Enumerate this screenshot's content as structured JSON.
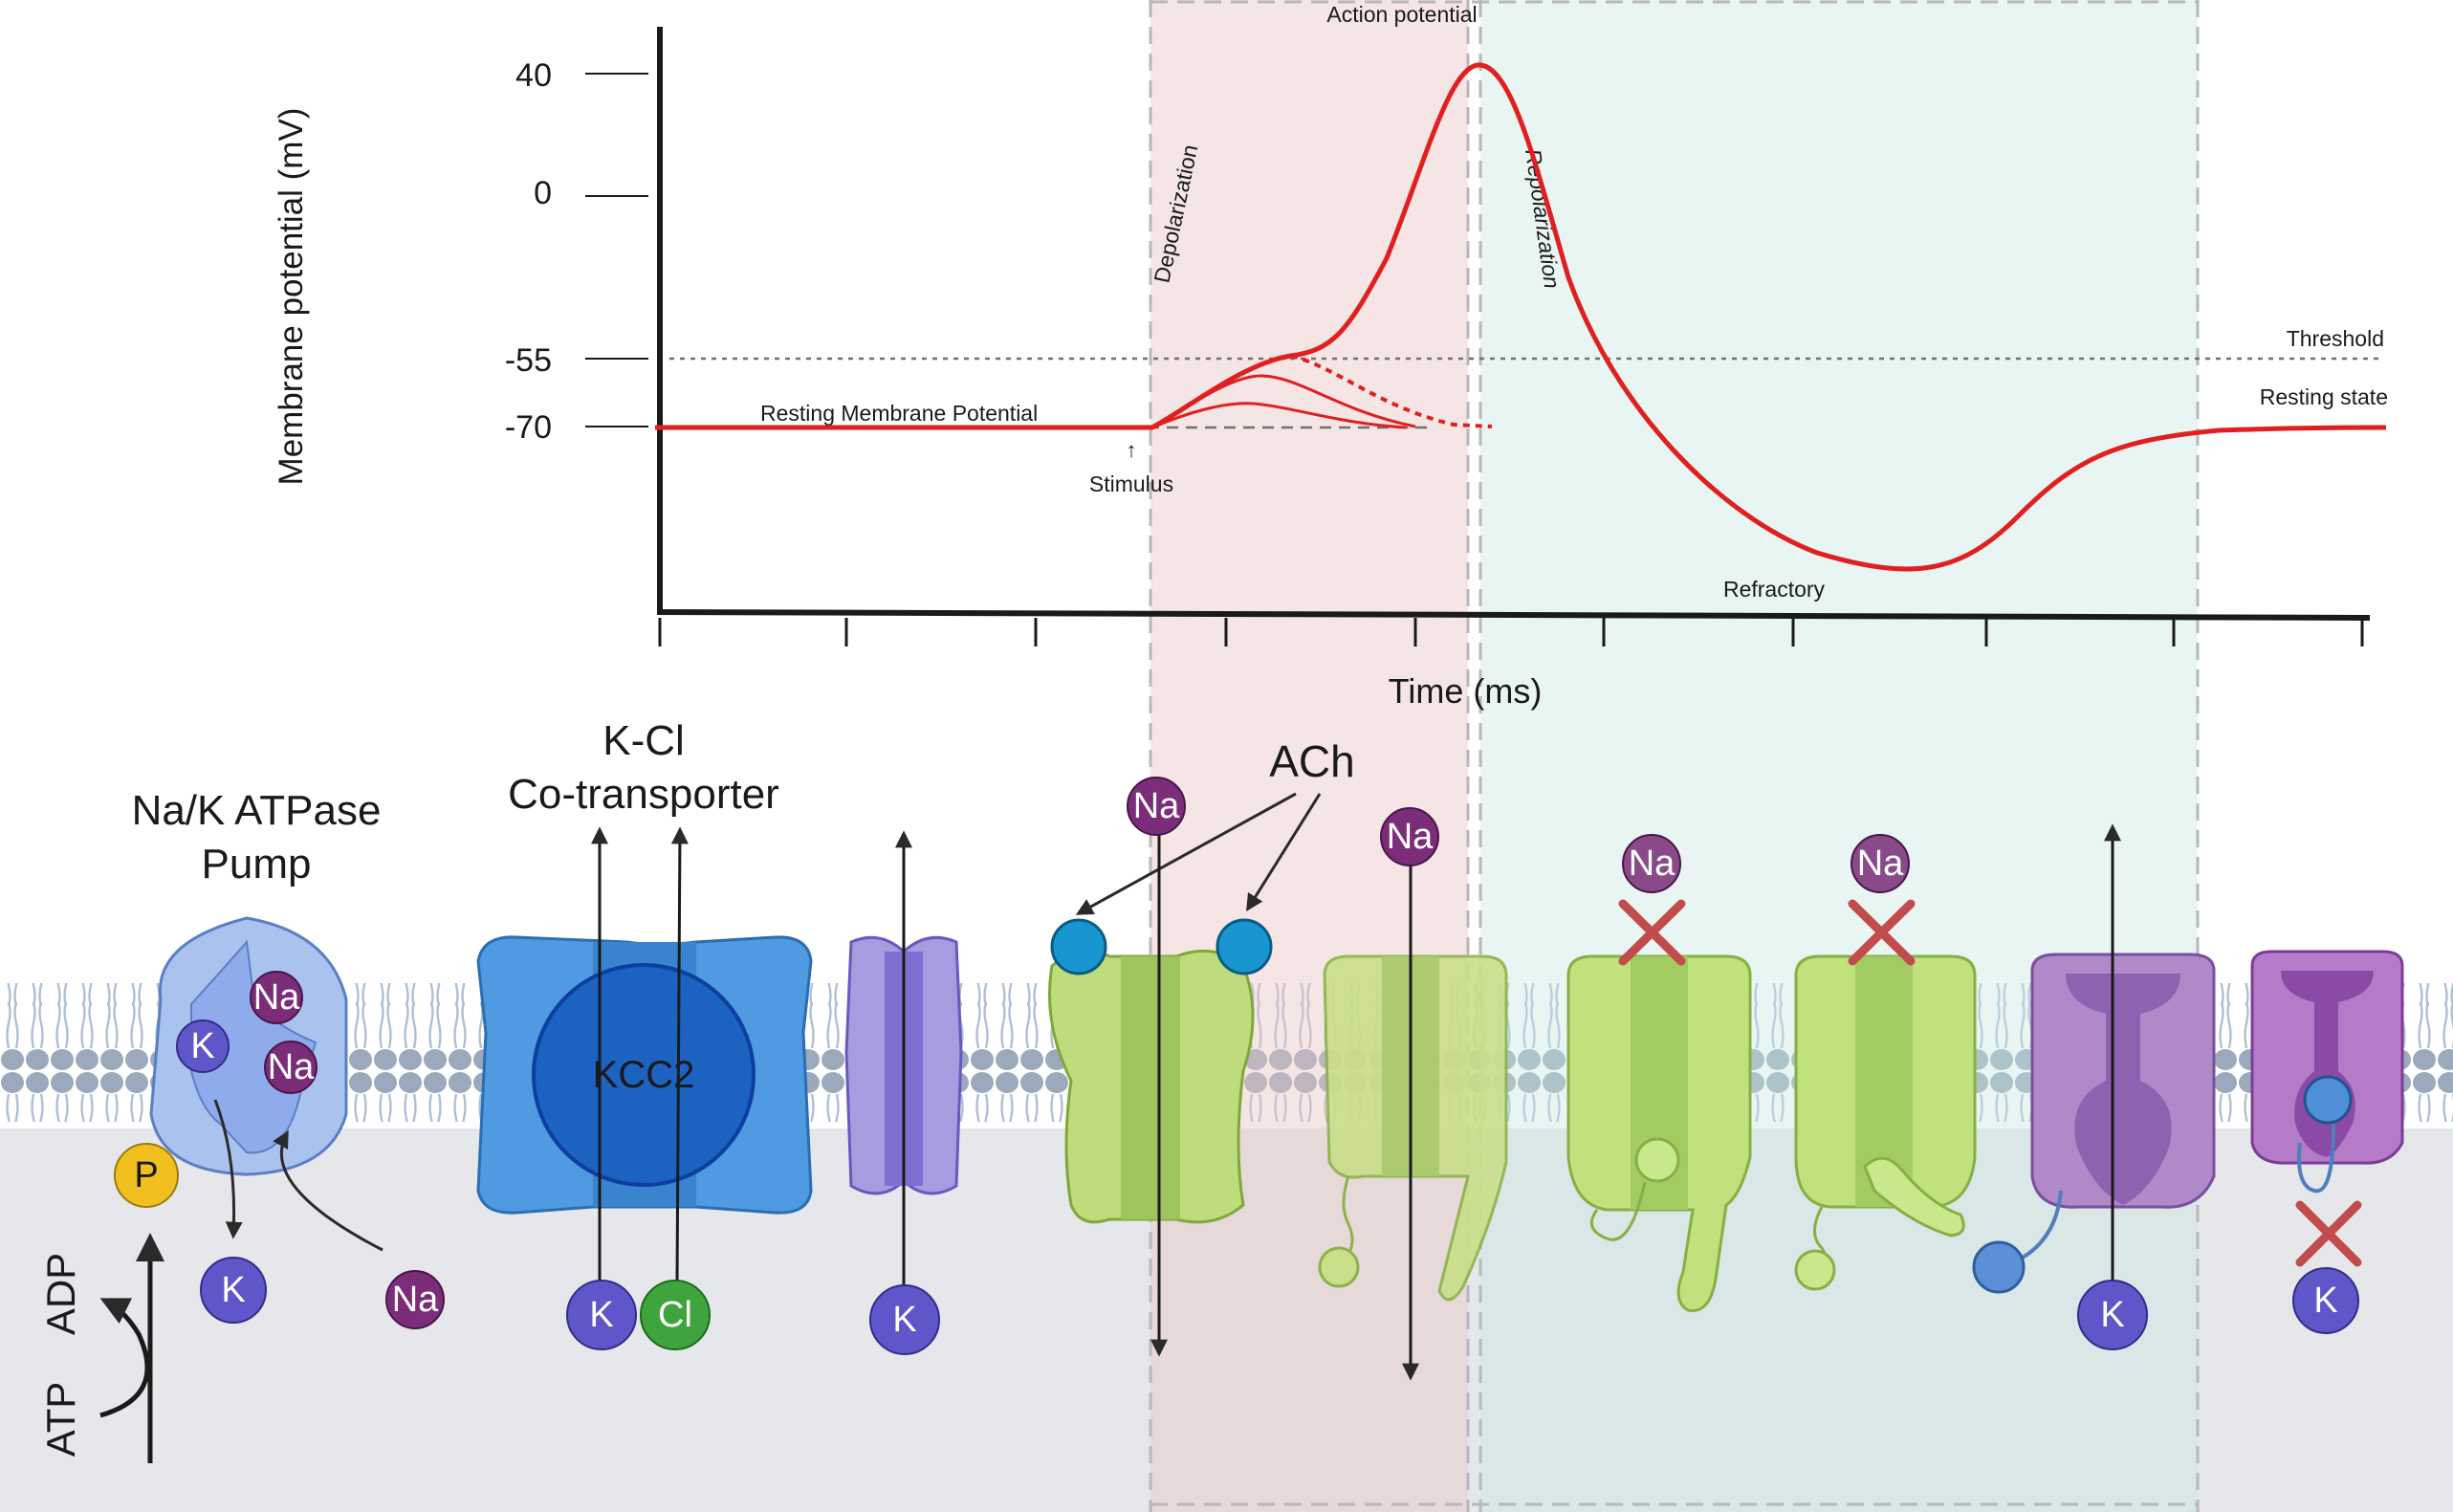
{
  "graph": {
    "y_axis_label": "Membrane potential (mV)",
    "x_axis_label": "Time (ms)",
    "y_ticks": [
      "40",
      "0",
      "-55",
      "-70"
    ],
    "phase_labels": {
      "action_potential": "Action potential",
      "depolarization": "Depolarization",
      "repolarization": "Repolarization",
      "refractory": "Refractory",
      "resting_membrane_potential": "Resting Membrane Potential",
      "stimulus": "Stimulus",
      "threshold": "Threshold",
      "resting_state": "Resting state"
    },
    "colors": {
      "trace": "#e02020",
      "depolarization_band": "#f3d5d5",
      "repolarization_band": "#d6ece8",
      "membrane_interior": "#e6e7ea"
    }
  },
  "chart_data": {
    "type": "line",
    "xlabel": "Time (ms)",
    "ylabel": "Membrane potential (mV)",
    "yticks": [
      40,
      0,
      -55,
      -70
    ],
    "reference_lines": [
      {
        "label": "Threshold",
        "y": -55
      },
      {
        "label": "Resting state",
        "y": -70
      }
    ]
  },
  "membrane": {
    "pump_title_line1": "Na/K ATPase",
    "pump_title_line2": "Pump",
    "cotransporter_title_line1": "K-Cl",
    "cotransporter_title_line2": "Co-transporter",
    "cotransporter_name": "KCC2",
    "ach_label": "ACh",
    "atp_label": "ATP",
    "adp_label": "ADP",
    "phosphate_label": "P",
    "ion_na": "Na",
    "ion_k": "K",
    "ion_cl": "Cl"
  }
}
